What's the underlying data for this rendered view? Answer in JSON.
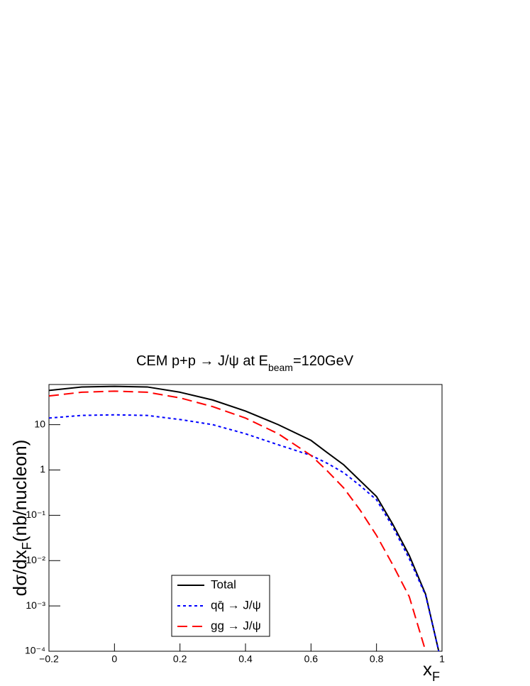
{
  "chart_data": {
    "type": "line",
    "title_parts": [
      "CEM p+p → J/ψ at E",
      "beam",
      "=120GeV"
    ],
    "y_label_parts": [
      "dσ/dx",
      "F",
      "(nb/nucleon)"
    ],
    "x_label_parts": [
      "x",
      "F"
    ],
    "log_y": true,
    "legend": "bottom-center",
    "x": [
      -0.2,
      -0.1,
      0,
      0.1,
      0.2,
      0.3,
      0.4,
      0.5,
      0.6,
      0.65,
      0.7,
      0.75,
      0.8,
      0.85,
      0.9,
      0.95,
      0.99
    ],
    "series": [
      {
        "name": "Total",
        "color": "#000000",
        "dash": "none",
        "values": [
          57,
          68,
          70,
          68,
          52,
          35,
          20,
          10,
          4.5,
          2.4,
          1.3,
          0.58,
          0.26,
          0.063,
          0.013,
          0.0018,
          0.0001
        ]
      },
      {
        "name": "qq̄ → J/ψ",
        "color": "#0000ff",
        "dash": "4 4",
        "values": [
          14,
          16,
          16.5,
          16,
          13,
          10,
          6.3,
          3.6,
          2.1,
          1.4,
          0.87,
          0.45,
          0.22,
          0.055,
          0.011,
          0.0017,
          0.0001
        ]
      },
      {
        "name": "gg → J/ψ",
        "color": "#ff0000",
        "dash": "14 7",
        "values": [
          43,
          52,
          55,
          52,
          39,
          25,
          14,
          6.3,
          2.1,
          0.95,
          0.4,
          0.13,
          0.036,
          0.008,
          0.0016,
          0.0001,
          null
        ]
      }
    ],
    "xlim": [
      -0.2,
      1
    ],
    "xticks": [
      {
        "value": -0.2,
        "label": "−0.2"
      },
      0,
      0.2,
      0.4,
      0.6,
      0.8,
      1
    ],
    "ylim": [
      0.0001,
      77
    ],
    "yticks": [
      {
        "value": 0.0001,
        "label": "10⁻⁴"
      },
      {
        "value": 0.001,
        "label": "10⁻³"
      },
      {
        "value": 0.01,
        "label": "10⁻²"
      },
      {
        "value": 0.1,
        "label": "10⁻¹"
      },
      1,
      10
    ]
  }
}
